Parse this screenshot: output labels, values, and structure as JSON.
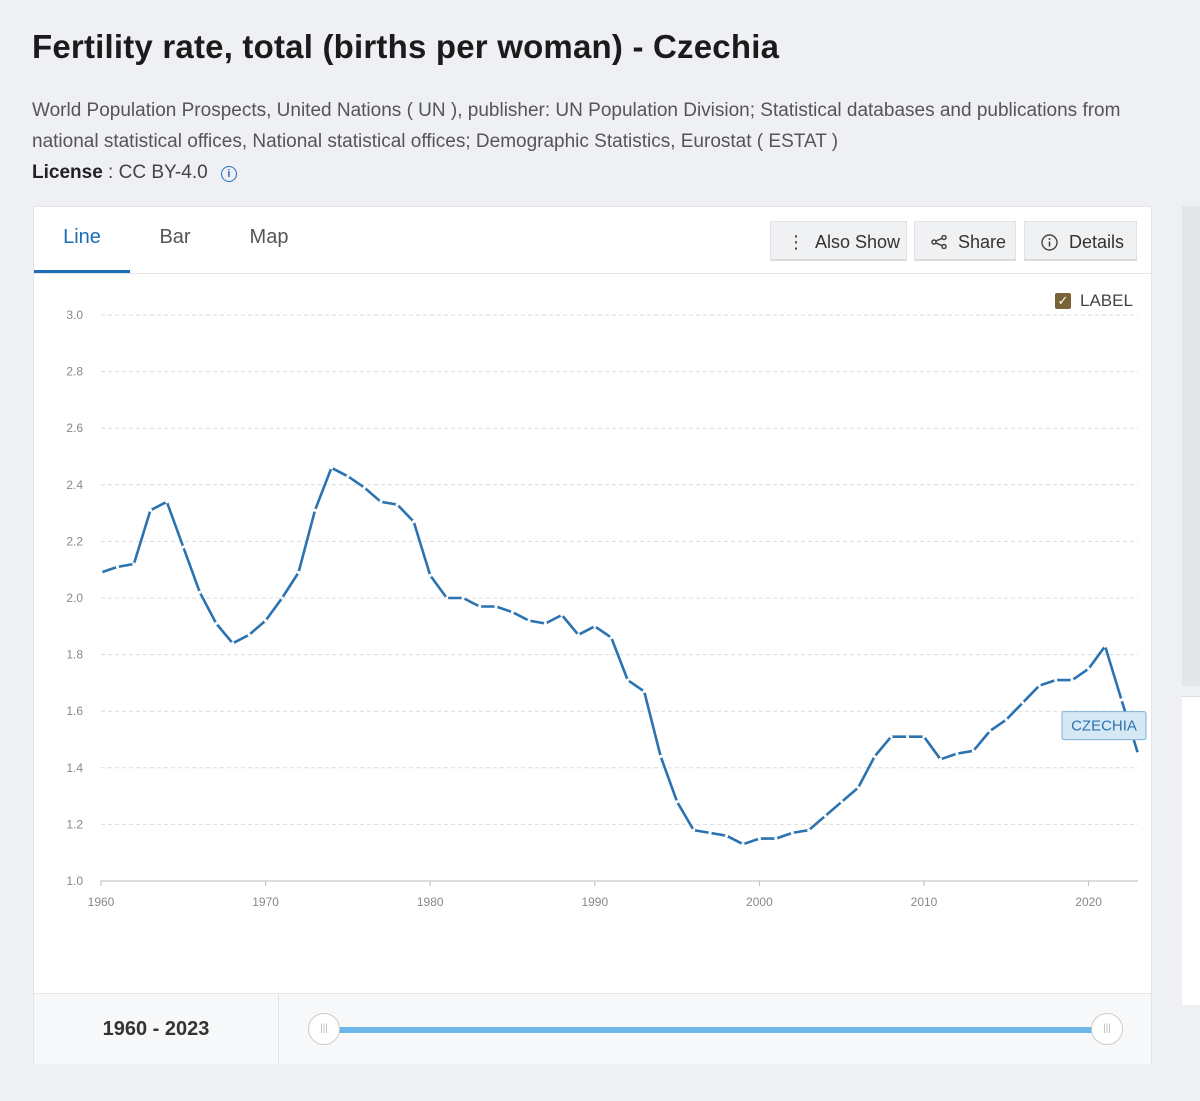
{
  "page": {
    "title": "Fertility rate, total (births per woman) - Czechia",
    "sources": "World Population Prospects, United Nations ( UN ), publisher: UN Population Division; Statistical databases and publications from national statistical offices, National statistical offices; Demographic Statistics, Eurostat ( ESTAT )",
    "license_label": "License",
    "license_value": ": CC BY-4.0"
  },
  "tabs": [
    {
      "label": "Line",
      "active": true
    },
    {
      "label": "Bar",
      "active": false
    },
    {
      "label": "Map",
      "active": false
    }
  ],
  "toolbar": {
    "also_show": "Also Show",
    "share": "Share",
    "details": "Details"
  },
  "label_toggle": {
    "label": "LABEL",
    "checked": true
  },
  "range": {
    "text": "1960 - 2023"
  },
  "colors": {
    "line": "#2b73b0",
    "accent": "#1a6cb5",
    "slider": "#6cb7ea"
  },
  "chart_data": {
    "type": "line",
    "x": [
      1960,
      1961,
      1962,
      1963,
      1964,
      1965,
      1966,
      1967,
      1968,
      1969,
      1970,
      1971,
      1972,
      1973,
      1974,
      1975,
      1976,
      1977,
      1978,
      1979,
      1980,
      1981,
      1982,
      1983,
      1984,
      1985,
      1986,
      1987,
      1988,
      1989,
      1990,
      1991,
      1992,
      1993,
      1994,
      1995,
      1996,
      1997,
      1998,
      1999,
      2000,
      2001,
      2002,
      2003,
      2004,
      2005,
      2006,
      2007,
      2008,
      2009,
      2010,
      2011,
      2012,
      2013,
      2014,
      2015,
      2016,
      2017,
      2018,
      2019,
      2020,
      2021,
      2022,
      2023
    ],
    "series": [
      {
        "name": "CZECHIA",
        "values": [
          2.09,
          2.11,
          2.12,
          2.31,
          2.34,
          2.18,
          2.02,
          1.91,
          1.84,
          1.87,
          1.92,
          2.0,
          2.09,
          2.31,
          2.46,
          2.43,
          2.39,
          2.34,
          2.33,
          2.27,
          2.08,
          2.0,
          2.0,
          1.97,
          1.97,
          1.95,
          1.92,
          1.91,
          1.94,
          1.87,
          1.9,
          1.86,
          1.71,
          1.67,
          1.44,
          1.28,
          1.18,
          1.17,
          1.16,
          1.13,
          1.15,
          1.15,
          1.17,
          1.18,
          1.23,
          1.28,
          1.33,
          1.44,
          1.51,
          1.51,
          1.51,
          1.43,
          1.45,
          1.46,
          1.53,
          1.57,
          1.63,
          1.69,
          1.71,
          1.71,
          1.75,
          1.83,
          1.64,
          1.45
        ]
      }
    ],
    "xticks": [
      1960,
      1970,
      1980,
      1990,
      2000,
      2010,
      2020
    ],
    "yticks": [
      1.0,
      1.2,
      1.4,
      1.6,
      1.8,
      2.0,
      2.2,
      2.4,
      2.6,
      2.8,
      3.0
    ],
    "ylim": [
      1.0,
      3.0
    ],
    "xlim": [
      1960,
      2023
    ],
    "grid": true,
    "end_label": "CZECHIA"
  }
}
